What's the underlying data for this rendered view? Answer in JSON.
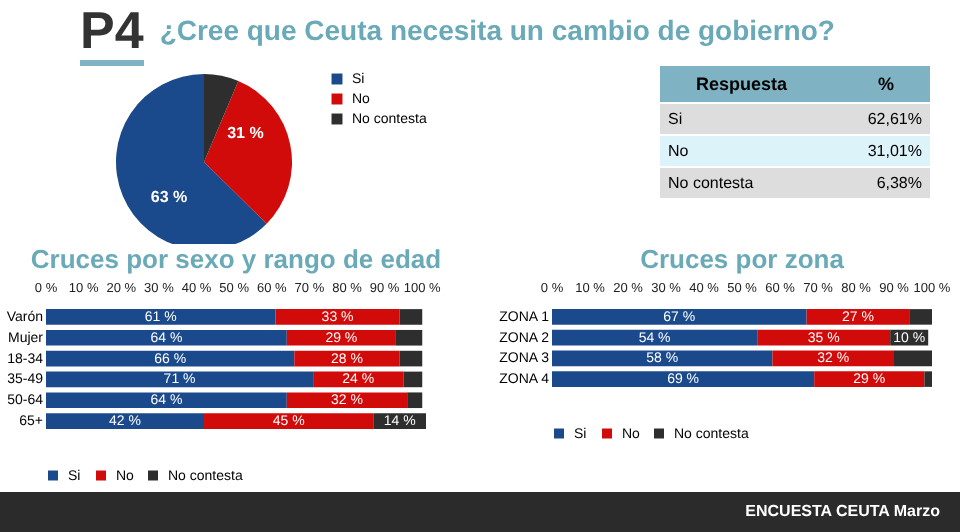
{
  "chart_data": [
    {
      "type": "pie",
      "title": "¿Cree que Ceuta necesita un cambio de gobierno?",
      "annotations": [
        "P4"
      ],
      "categories": [
        "Si",
        "No",
        "No contesta"
      ],
      "values": [
        62.61,
        31.01,
        6.38
      ],
      "colors": [
        "#1b4a8c",
        "#d10a0a",
        "#2e2e2e"
      ],
      "value_labels": [
        "63 %",
        "31 %",
        null
      ],
      "legend": "right"
    },
    {
      "type": "other",
      "annotations": [
        "Respuesta",
        "%",
        "Si",
        "62,61%",
        "No",
        "31,01%",
        "No contesta",
        "6,38%"
      ]
    },
    {
      "type": "bar",
      "orientation": "horizontal",
      "stacked": true,
      "title": "Cruces por sexo y rango de edad",
      "categories": [
        "Varón",
        "Mujer",
        "18-34",
        "35-49",
        "50-64",
        "65+"
      ],
      "series": [
        {
          "name": "Si",
          "color": "#1b4a8c",
          "values": [
            61,
            64,
            66,
            71,
            64,
            42
          ],
          "value_labels": [
            "61 %",
            "64 %",
            "66 %",
            "71 %",
            "64 %",
            "42 %"
          ]
        },
        {
          "name": "No",
          "color": "#d10a0a",
          "values": [
            33,
            29,
            28,
            24,
            32,
            45
          ],
          "value_labels": [
            "33 %",
            "29 %",
            "28 %",
            "24 %",
            "32 %",
            "45 %"
          ]
        },
        {
          "name": "No contesta",
          "color": "#2e2e2e",
          "values": [
            6,
            7,
            6,
            5,
            4,
            14
          ],
          "value_labels": [
            null,
            null,
            null,
            null,
            null,
            "14 %"
          ]
        }
      ],
      "xlim": [
        0,
        101
      ],
      "xticks": [
        {
          "value": 0,
          "label": "0 %"
        },
        {
          "value": 10,
          "label": "10 %"
        },
        {
          "value": 20,
          "label": "20 %"
        },
        {
          "value": 30,
          "label": "30 %"
        },
        {
          "value": 40,
          "label": "40 %"
        },
        {
          "value": 50,
          "label": "50 %"
        },
        {
          "value": 60,
          "label": "60 %"
        },
        {
          "value": 70,
          "label": "70 %"
        },
        {
          "value": 80,
          "label": "80 %"
        },
        {
          "value": 90,
          "label": "90 %"
        },
        {
          "value": 100,
          "label": "100 %"
        }
      ],
      "legend": "bottom"
    },
    {
      "type": "bar",
      "orientation": "horizontal",
      "stacked": true,
      "title": "Cruces por zona",
      "categories": [
        "ZONA 1",
        "ZONA 2",
        "ZONA 3",
        "ZONA 4"
      ],
      "series": [
        {
          "name": "Si",
          "color": "#1b4a8c",
          "values": [
            67,
            54,
            58,
            69
          ],
          "value_labels": [
            "67 %",
            "54 %",
            "58 %",
            "69 %"
          ]
        },
        {
          "name": "No",
          "color": "#d10a0a",
          "values": [
            27,
            35,
            32,
            29
          ],
          "value_labels": [
            "27 %",
            "35 %",
            "32 %",
            "29 %"
          ]
        },
        {
          "name": "No contesta",
          "color": "#2e2e2e",
          "values": [
            6,
            10,
            10,
            2
          ],
          "value_labels": [
            null,
            "10 %",
            null,
            null
          ]
        }
      ],
      "xlim": [
        0,
        100
      ],
      "xticks": [
        {
          "value": 0,
          "label": "0 %"
        },
        {
          "value": 10,
          "label": "10 %"
        },
        {
          "value": 20,
          "label": "20 %"
        },
        {
          "value": 30,
          "label": "30 %"
        },
        {
          "value": 40,
          "label": "40 %"
        },
        {
          "value": 50,
          "label": "50 %"
        },
        {
          "value": 60,
          "label": "60 %"
        },
        {
          "value": 70,
          "label": "70 %"
        },
        {
          "value": 80,
          "label": "80 %"
        },
        {
          "value": 90,
          "label": "90 %"
        },
        {
          "value": 100,
          "label": "100 %"
        }
      ],
      "legend": "bottom",
      "annotations": [
        "ENCUESTA CEUTA Marzo"
      ]
    }
  ]
}
